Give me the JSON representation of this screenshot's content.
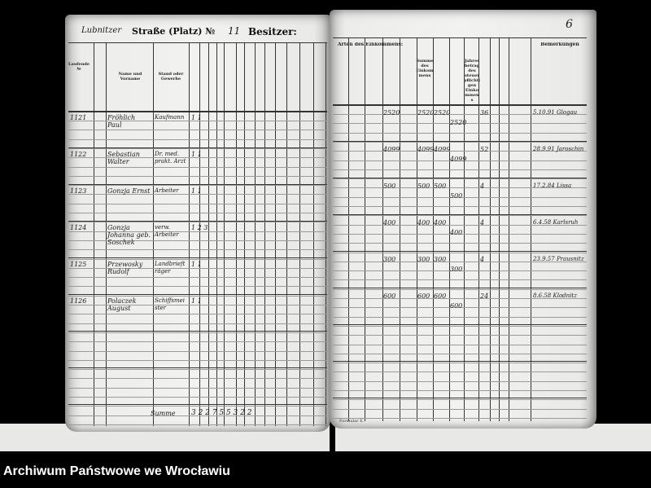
{
  "header": {
    "street_handwritten": "Lubnitzer",
    "street_label": "Straße (Platz) №",
    "house_number": "11",
    "owner_label": "Besitzer:",
    "page_number": "6"
  },
  "left_columns": [
    "Laufende №",
    "Name und Vorname",
    "Stand oder Gewerbe"
  ],
  "right_columns": [
    "Arten des Einkommens:",
    "Summe des Einkommens",
    "Jahresbetrag des steuerpflichtigen Einkommens",
    "Bemerkungen"
  ],
  "rows": [
    {
      "no": "1121",
      "name": "Fröhlich Paul",
      "occupation": "Kaufmann",
      "counts": "1   1",
      "income": "2520",
      "sum": "2520",
      "sum2": "2520",
      "tax": "36",
      "remark": "5.10.91 Glogau"
    },
    {
      "no": "1122",
      "name": "Sebastian Walter",
      "occupation": "Dr. med. prakt. Arzt",
      "counts": "1   1",
      "income": "4099",
      "sum": "4099",
      "sum2": "4099",
      "tax": "52",
      "remark": "28.9.91 Jaroschin"
    },
    {
      "no": "1123",
      "name": "Gonzja Ernst",
      "occupation": "Arbeiter",
      "counts": "1   1",
      "income": "500",
      "sum": "500",
      "sum2": "500",
      "tax": "4",
      "remark": "17.2.84 Lissa"
    },
    {
      "no": "1124",
      "name": "Gonzja Johanna geb. Soschek",
      "occupation": "verw. Arbeiter",
      "counts": "1 2 3",
      "income": "400",
      "sum": "400",
      "sum2": "400",
      "tax": "4",
      "remark": "6.4.58 Karlsruh"
    },
    {
      "no": "1125",
      "name": "Przewosky Rudolf",
      "occupation": "Landbriefträger",
      "counts": "1   1",
      "income": "300",
      "sum": "300",
      "sum2": "300",
      "tax": "4",
      "remark": "23.9.57 Prausnitz"
    },
    {
      "no": "1126",
      "name": "Polaczek August",
      "occupation": "Schiffsmeister",
      "counts": "1   1",
      "income": "600",
      "sum": "600",
      "sum2": "600",
      "tax": "24",
      "remark": "8.6.58 Klodnitz"
    }
  ],
  "totals": {
    "label": "Summe",
    "values": "3 2 2 7   5 5 3 2 2"
  },
  "footer_form": "Formular E.",
  "caption": "Archiwum Państwowe we Wrocławiu"
}
